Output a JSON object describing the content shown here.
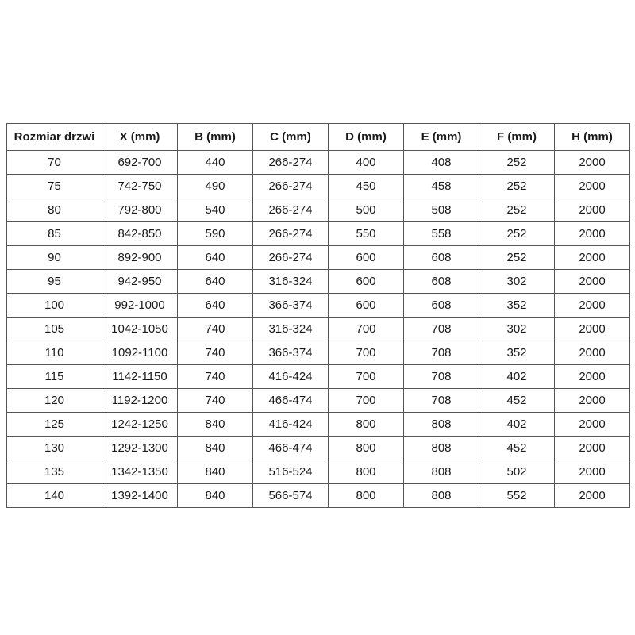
{
  "colors": {
    "background": "#ffffff",
    "border": "#555555",
    "text": "#1a1a1a"
  },
  "table": {
    "headers": [
      "Rozmiar drzwi",
      "X (mm)",
      "B (mm)",
      "C (mm)",
      "D (mm)",
      "E (mm)",
      "F (mm)",
      "H (mm)"
    ],
    "rows": [
      [
        "70",
        "692-700",
        "440",
        "266-274",
        "400",
        "408",
        "252",
        "2000"
      ],
      [
        "75",
        "742-750",
        "490",
        "266-274",
        "450",
        "458",
        "252",
        "2000"
      ],
      [
        "80",
        "792-800",
        "540",
        "266-274",
        "500",
        "508",
        "252",
        "2000"
      ],
      [
        "85",
        "842-850",
        "590",
        "266-274",
        "550",
        "558",
        "252",
        "2000"
      ],
      [
        "90",
        "892-900",
        "640",
        "266-274",
        "600",
        "608",
        "252",
        "2000"
      ],
      [
        "95",
        "942-950",
        "640",
        "316-324",
        "600",
        "608",
        "302",
        "2000"
      ],
      [
        "100",
        "992-1000",
        "640",
        "366-374",
        "600",
        "608",
        "352",
        "2000"
      ],
      [
        "105",
        "1042-1050",
        "740",
        "316-324",
        "700",
        "708",
        "302",
        "2000"
      ],
      [
        "110",
        "1092-1100",
        "740",
        "366-374",
        "700",
        "708",
        "352",
        "2000"
      ],
      [
        "115",
        "1142-1150",
        "740",
        "416-424",
        "700",
        "708",
        "402",
        "2000"
      ],
      [
        "120",
        "1192-1200",
        "740",
        "466-474",
        "700",
        "708",
        "452",
        "2000"
      ],
      [
        "125",
        "1242-1250",
        "840",
        "416-424",
        "800",
        "808",
        "402",
        "2000"
      ],
      [
        "130",
        "1292-1300",
        "840",
        "466-474",
        "800",
        "808",
        "452",
        "2000"
      ],
      [
        "135",
        "1342-1350",
        "840",
        "516-524",
        "800",
        "808",
        "502",
        "2000"
      ],
      [
        "140",
        "1392-1400",
        "840",
        "566-574",
        "800",
        "808",
        "552",
        "2000"
      ]
    ]
  }
}
